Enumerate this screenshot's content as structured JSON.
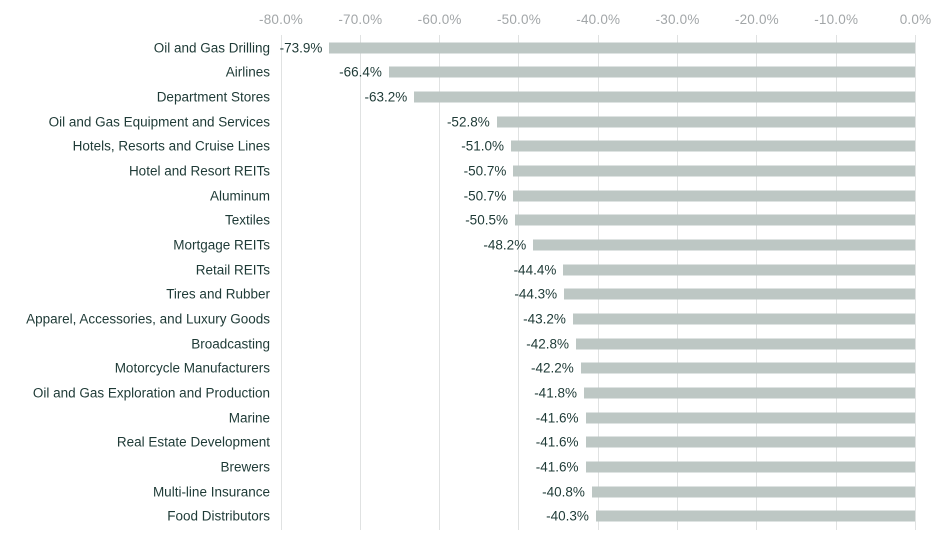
{
  "chart_data": {
    "type": "bar",
    "orientation": "horizontal",
    "title": "",
    "xlabel": "",
    "ylabel": "",
    "xlim": [
      -80,
      0
    ],
    "grid": true,
    "x_tick_labels": [
      "-80.0%",
      "-70.0%",
      "-60.0%",
      "-50.0%",
      "-40.0%",
      "-30.0%",
      "-20.0%",
      "-10.0%",
      "0.0%"
    ],
    "x_tick_values": [
      -80,
      -70,
      -60,
      -50,
      -40,
      -30,
      -20,
      -10,
      0
    ],
    "categories": [
      "Oil and Gas Drilling",
      "Airlines",
      "Department Stores",
      "Oil and Gas Equipment and Services",
      "Hotels, Resorts and Cruise Lines",
      "Hotel and Resort REITs",
      "Aluminum",
      "Textiles",
      "Mortgage REITs",
      "Retail REITs",
      "Tires and Rubber",
      "Apparel, Accessories, and Luxury Goods",
      "Broadcasting",
      "Motorcycle Manufacturers",
      "Oil and Gas Exploration and Production",
      "Marine",
      "Real Estate Development",
      "Brewers",
      "Multi-line Insurance",
      "Food Distributors"
    ],
    "values": [
      -73.9,
      -66.4,
      -63.2,
      -52.8,
      -51.0,
      -50.7,
      -50.7,
      -50.5,
      -48.2,
      -44.4,
      -44.3,
      -43.2,
      -42.8,
      -42.2,
      -41.8,
      -41.6,
      -41.6,
      -41.6,
      -40.8,
      -40.3
    ],
    "value_labels": [
      "-73.9%",
      "-66.4%",
      "-63.2%",
      "-52.8%",
      "-51.0%",
      "-50.7%",
      "-50.7%",
      "-50.5%",
      "-48.2%",
      "-44.4%",
      "-44.3%",
      "-43.2%",
      "-42.8%",
      "-42.2%",
      "-41.8%",
      "-41.6%",
      "-41.6%",
      "-41.6%",
      "-40.8%",
      "-40.3%"
    ],
    "colors": {
      "bar": "#bdc7c4",
      "grid": "#e0e2e2",
      "label_text": "#1e3a36",
      "axis_text": "#a2a6a8",
      "background": "#ffffff"
    },
    "legend": null
  }
}
